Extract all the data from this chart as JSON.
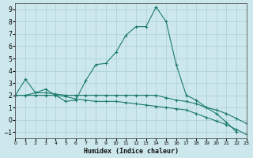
{
  "xlabel": "Humidex (Indice chaleur)",
  "background_color": "#cde8ec",
  "grid_color": "#aacdd4",
  "line_color": "#1a7a6e",
  "series": [
    {
      "x": [
        0,
        1,
        2,
        3,
        4,
        5,
        6,
        7,
        8,
        9,
        10,
        11,
        12,
        13,
        14,
        15,
        16,
        17,
        18,
        19,
        20,
        21,
        22
      ],
      "y": [
        2.0,
        3.3,
        2.2,
        2.5,
        2.0,
        1.5,
        1.6,
        3.2,
        4.5,
        4.6,
        5.5,
        6.9,
        7.6,
        7.6,
        9.2,
        8.0,
        4.5,
        2.0,
        1.6,
        1.0,
        0.5,
        -0.2,
        -1.0
      ]
    },
    {
      "x": [
        0,
        1,
        2,
        3,
        4,
        5,
        6,
        7,
        8,
        9,
        10,
        11,
        12,
        13,
        14,
        15,
        16,
        17,
        18,
        19,
        20,
        21,
        22,
        23
      ],
      "y": [
        2.0,
        2.0,
        2.2,
        2.2,
        2.1,
        2.0,
        2.0,
        2.0,
        2.0,
        2.0,
        2.0,
        2.0,
        2.0,
        2.0,
        2.0,
        1.8,
        1.6,
        1.5,
        1.3,
        1.0,
        0.8,
        0.5,
        0.1,
        -0.3
      ]
    },
    {
      "x": [
        0,
        1,
        2,
        3,
        4,
        5,
        6,
        7,
        8,
        9,
        10,
        11,
        12,
        13,
        14,
        15,
        16,
        17,
        18,
        19,
        20,
        21,
        22,
        23
      ],
      "y": [
        2.0,
        2.0,
        2.0,
        2.0,
        2.0,
        1.9,
        1.7,
        1.6,
        1.5,
        1.5,
        1.5,
        1.4,
        1.3,
        1.2,
        1.1,
        1.0,
        0.9,
        0.8,
        0.5,
        0.2,
        -0.1,
        -0.4,
        -0.8,
        -1.2
      ]
    }
  ],
  "xlim": [
    0,
    23
  ],
  "ylim": [
    -1.5,
    9.5
  ],
  "xticks": [
    0,
    1,
    2,
    3,
    4,
    5,
    6,
    7,
    8,
    9,
    10,
    11,
    12,
    13,
    14,
    15,
    16,
    17,
    18,
    19,
    20,
    21,
    22,
    23
  ],
  "yticks": [
    -1,
    0,
    1,
    2,
    3,
    4,
    5,
    6,
    7,
    8,
    9
  ]
}
